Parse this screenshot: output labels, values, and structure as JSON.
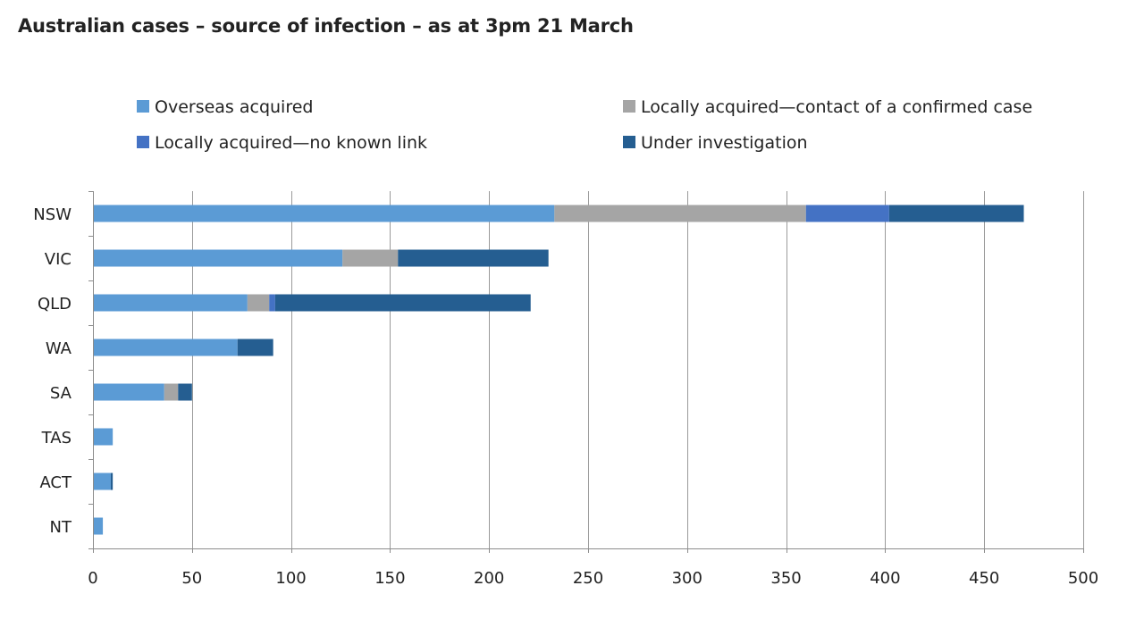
{
  "chart_data": {
    "type": "bar",
    "orientation": "horizontal",
    "stacked": true,
    "title": "Australian cases – source of infection – as at 3pm 21 March",
    "xlabel": "",
    "ylabel": "",
    "xlim": [
      0,
      500
    ],
    "x_ticks": [
      0,
      50,
      100,
      150,
      200,
      250,
      300,
      350,
      400,
      450,
      500
    ],
    "grid": "vertical",
    "legend_position": "top",
    "categories": [
      "NSW",
      "VIC",
      "QLD",
      "WA",
      "SA",
      "TAS",
      "ACT",
      "NT"
    ],
    "series": [
      {
        "name": "Overseas acquired",
        "color": "#5b9bd5",
        "values": [
          233,
          126,
          78,
          73,
          36,
          10,
          9,
          5
        ]
      },
      {
        "name": "Locally acquired—contact of a confirmed case",
        "color": "#a5a5a5",
        "values": [
          127,
          28,
          11,
          0,
          7,
          0,
          0,
          0
        ]
      },
      {
        "name": "Locally acquired—no known link",
        "color": "#4472c4",
        "values": [
          42,
          0,
          3,
          0,
          0,
          0,
          0,
          0
        ]
      },
      {
        "name": "Under investigation",
        "color": "#255e91",
        "values": [
          68,
          76,
          129,
          18,
          7,
          0,
          1,
          0
        ]
      }
    ]
  }
}
